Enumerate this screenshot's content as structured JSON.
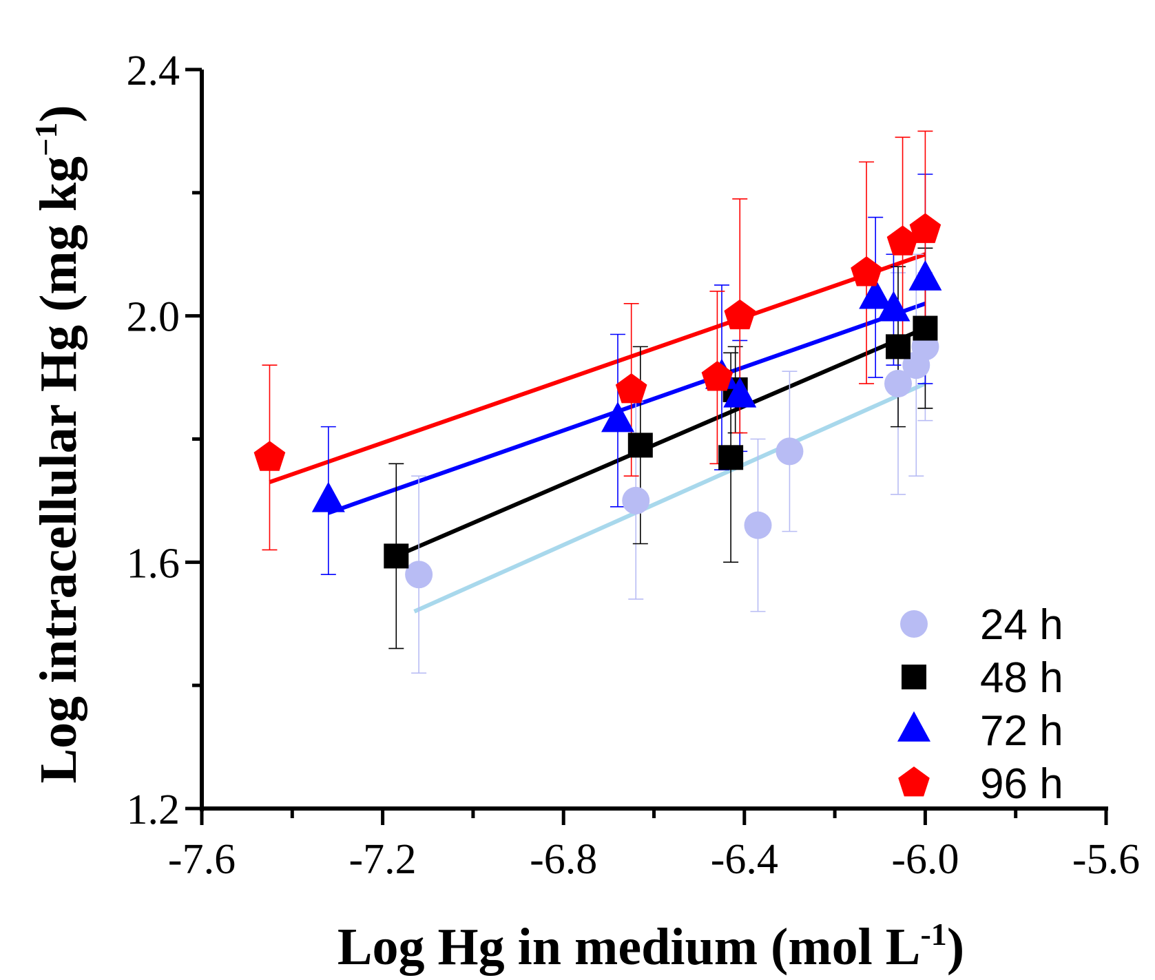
{
  "chart_data": {
    "type": "scatter",
    "xlabel": "Log Hg in medium (mol L",
    "xlabel_sup": "-1",
    "xlabel_close": ")",
    "ylabel": "Log intracellular Hg (mg kg",
    "ylabel_sup": "−1",
    "ylabel_close": ")",
    "xlim": [
      -7.6,
      -5.6
    ],
    "ylim": [
      1.2,
      2.4
    ],
    "xticks": [
      -7.6,
      -7.2,
      -6.8,
      -6.4,
      -6.0,
      -5.6
    ],
    "xtick_labels": [
      "-7.6",
      "-7.2",
      "-6.8",
      "-6.4",
      "-6.0",
      "-5.6"
    ],
    "yticks": [
      1.2,
      1.6,
      2.0,
      2.4
    ],
    "ytick_labels": [
      "1.2",
      "1.6",
      "2.0",
      "2.4"
    ],
    "legend_position": "bottom-right",
    "series": [
      {
        "name": "24 h",
        "color": "#b8bcf4",
        "line_color": "#a8d8ec",
        "marker": "circle",
        "points": [
          {
            "x": -7.12,
            "y": 1.58,
            "err": 0.16
          },
          {
            "x": -6.64,
            "y": 1.7,
            "err": 0.16
          },
          {
            "x": -6.37,
            "y": 1.66,
            "err": 0.14
          },
          {
            "x": -6.3,
            "y": 1.78,
            "err": 0.13
          },
          {
            "x": -6.06,
            "y": 1.89,
            "err": 0.18
          },
          {
            "x": -6.02,
            "y": 1.92,
            "err": 0.18
          },
          {
            "x": -6.0,
            "y": 1.95,
            "err": 0.12
          }
        ],
        "fit": [
          [
            -7.13,
            1.52
          ],
          [
            -6.0,
            1.89
          ]
        ]
      },
      {
        "name": "48 h",
        "color": "#000000",
        "line_color": "#000000",
        "marker": "square",
        "points": [
          {
            "x": -7.17,
            "y": 1.61,
            "err": 0.15
          },
          {
            "x": -6.63,
            "y": 1.79,
            "err": 0.16
          },
          {
            "x": -6.43,
            "y": 1.77,
            "err": 0.17
          },
          {
            "x": -6.42,
            "y": 1.88,
            "err": 0.07
          },
          {
            "x": -6.06,
            "y": 1.95,
            "err": 0.13
          },
          {
            "x": -6.0,
            "y": 1.98,
            "err": 0.13
          }
        ],
        "fit": [
          [
            -7.17,
            1.61
          ],
          [
            -6.0,
            1.98
          ]
        ]
      },
      {
        "name": "72 h",
        "color": "#0000ff",
        "line_color": "#0000ff",
        "marker": "triangle",
        "points": [
          {
            "x": -7.32,
            "y": 1.7,
            "err": 0.12
          },
          {
            "x": -6.68,
            "y": 1.83,
            "err": 0.14
          },
          {
            "x": -6.45,
            "y": 1.9,
            "err": 0.15
          },
          {
            "x": -6.41,
            "y": 1.87,
            "err": 0.09
          },
          {
            "x": -6.11,
            "y": 2.03,
            "err": 0.13
          },
          {
            "x": -6.07,
            "y": 2.01,
            "err": 0.09
          },
          {
            "x": -6.0,
            "y": 2.06,
            "err": 0.17
          }
        ],
        "fit": [
          [
            -7.32,
            1.68
          ],
          [
            -6.0,
            2.02
          ]
        ]
      },
      {
        "name": "96 h",
        "color": "#ff0000",
        "line_color": "#ff0000",
        "marker": "pentagon",
        "points": [
          {
            "x": -7.45,
            "y": 1.77,
            "err": 0.15
          },
          {
            "x": -6.65,
            "y": 1.88,
            "err": 0.14
          },
          {
            "x": -6.46,
            "y": 1.9,
            "err": 0.14
          },
          {
            "x": -6.41,
            "y": 2.0,
            "err": 0.19
          },
          {
            "x": -6.13,
            "y": 2.07,
            "err": 0.18
          },
          {
            "x": -6.05,
            "y": 2.12,
            "err": 0.17
          },
          {
            "x": -6.0,
            "y": 2.14,
            "err": 0.16
          }
        ],
        "fit": [
          [
            -7.45,
            1.73
          ],
          [
            -6.0,
            2.1
          ]
        ]
      }
    ]
  }
}
